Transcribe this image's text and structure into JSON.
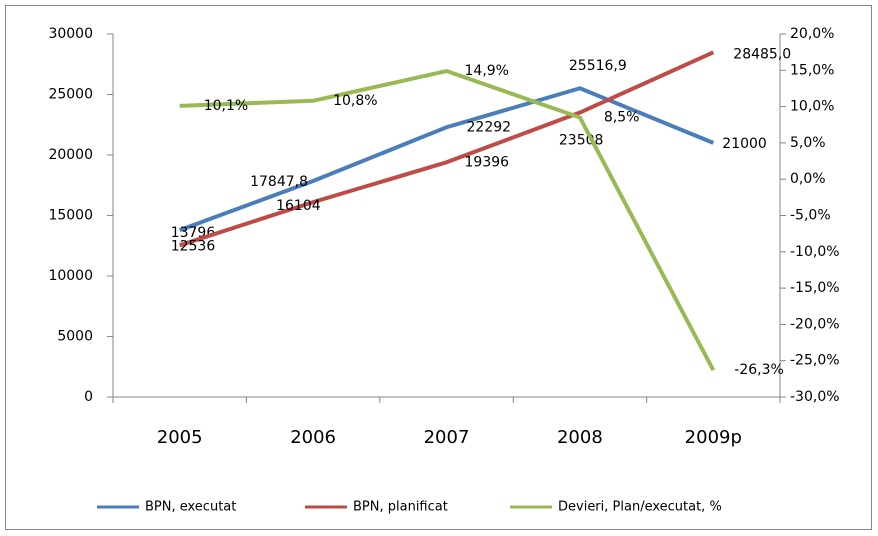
{
  "chart_data": {
    "type": "line",
    "categories": [
      "2005",
      "2006",
      "2007",
      "2008",
      "2009p"
    ],
    "ylim": [
      0,
      30000
    ],
    "yticks": [
      0,
      5000,
      10000,
      15000,
      20000,
      25000,
      30000
    ],
    "y2lim": [
      -30,
      20
    ],
    "y2ticks": [
      {
        "value": -30,
        "label": "-30,0%"
      },
      {
        "value": -25,
        "label": "-25,0%"
      },
      {
        "value": -20,
        "label": "-20,0%"
      },
      {
        "value": -15,
        "label": "-15,0%"
      },
      {
        "value": -10,
        "label": "-10,0%"
      },
      {
        "value": -5,
        "label": "-5,0%"
      },
      {
        "value": 0,
        "label": "0,0%"
      },
      {
        "value": 5,
        "label": "5,0%"
      },
      {
        "value": 10,
        "label": "10,0%"
      },
      {
        "value": 15,
        "label": "15,0%"
      },
      {
        "value": 20,
        "label": "20,0%"
      }
    ],
    "legend": "bottom",
    "grid": false,
    "series": [
      {
        "name": "BPN, executat",
        "color": "#4a7ebb",
        "values": [
          13796,
          17847.8,
          22292,
          25516.9,
          21000
        ],
        "value_labels": [
          "13796",
          "17847,8",
          "22292",
          "25516,9",
          "21000"
        ]
      },
      {
        "name": "BPN, planificat",
        "color": "#be4b48",
        "values": [
          12536,
          16104,
          19396,
          23508,
          28485.0
        ],
        "value_labels": [
          "12536",
          "16104",
          "19396",
          "23508",
          "28485,0"
        ]
      },
      {
        "name": "Devieri, Plan/executat, %",
        "color": "#98b954",
        "axis": "y2",
        "values": [
          10.1,
          10.8,
          14.9,
          8.5,
          -26.3
        ],
        "value_labels": [
          "10,1%",
          "10,8%",
          "14,9%",
          "8,5%",
          "-26,3%"
        ]
      }
    ]
  }
}
